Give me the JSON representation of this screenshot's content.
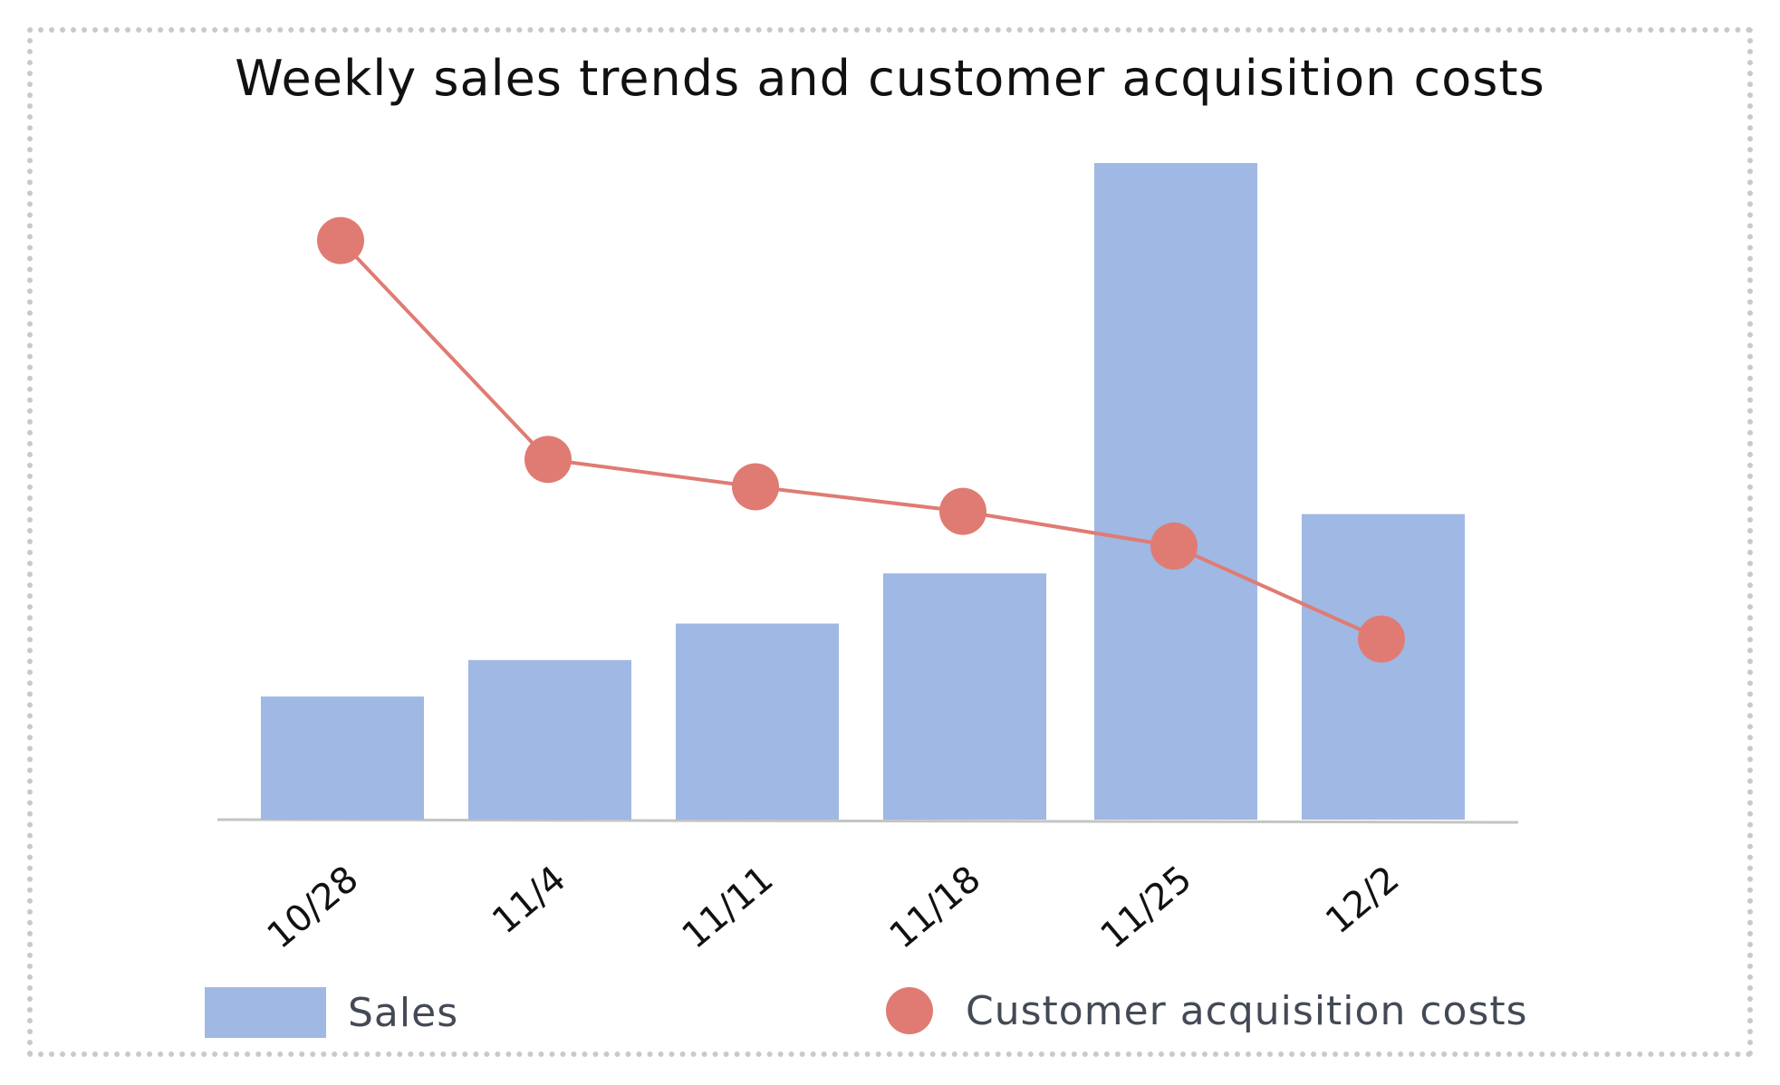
{
  "chart_data": {
    "type": "bar",
    "title": "Weekly sales trends and customer acquisition costs",
    "categories": [
      "10/28",
      "11/4",
      "11/11",
      "11/18",
      "11/25",
      "12/2"
    ],
    "series": [
      {
        "name": "Sales",
        "kind": "bar",
        "color": "#a0b8e4",
        "values": [
          13.5,
          17.5,
          21.5,
          27,
          72,
          33.5
        ]
      },
      {
        "name": "Customer acquisition costs",
        "kind": "line",
        "color": "#e07b73",
        "values": [
          63.5,
          39.5,
          36.5,
          33.8,
          30,
          19.8
        ]
      }
    ],
    "ylim": [
      0,
      90
    ],
    "grid": false,
    "legend_position": "bottom"
  }
}
